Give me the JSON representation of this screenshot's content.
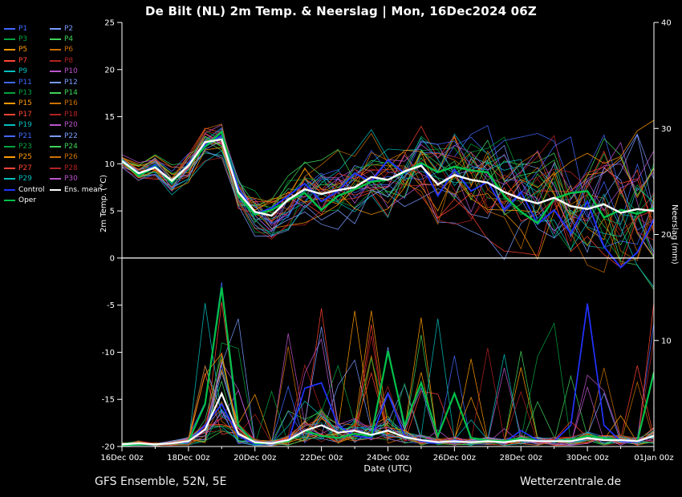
{
  "title": "De Bilt  (NL)  2m Temp. & Neerslag | Mon, 16Dec2024 06Z",
  "footer": {
    "left": "GFS Ensemble, 52N, 5E",
    "right": "Wetterzentrale.de"
  },
  "legend": {
    "member_labels": [
      "P1",
      "P2",
      "P3",
      "P4",
      "P5",
      "P6",
      "P7",
      "P8",
      "P9",
      "P10",
      "P11",
      "P12",
      "P13",
      "P14",
      "P15",
      "P16",
      "P17",
      "P18",
      "P19",
      "P20",
      "P21",
      "P22",
      "P23",
      "P24",
      "P25",
      "P26",
      "P27",
      "P28",
      "P29",
      "P30"
    ],
    "member_palette": [
      "#4169ff",
      "#7a9bff",
      "#00a33e",
      "#3fd35a",
      "#ff9a00",
      "#cc7000",
      "#ff4433",
      "#b22222",
      "#00bfbf",
      "#bb55cc"
    ],
    "specials": [
      {
        "label": "Control",
        "color": "#2233ff",
        "text_color": "#ffffff"
      },
      {
        "label": "Ens. mean",
        "color": "#ffffff",
        "text_color": "#ffffff"
      },
      {
        "label": "Oper",
        "color": "#00c24a",
        "text_color": "#ffffff"
      }
    ]
  },
  "chart_data": {
    "type": "line",
    "title": "De Bilt (NL) 2m Temp. & Neerslag | Mon, 16Dec2024 06Z",
    "xlabel": "Date (UTC)",
    "ylabel_left": "2m Temp. (°C)",
    "ylabel_right": "Neerslag (mm)",
    "x_tick_labels": [
      "16Dec 00z",
      "18Dec 00z",
      "20Dec 00z",
      "22Dec 00z",
      "24Dec 00z",
      "26Dec 00z",
      "28Dec 00z",
      "30Dec 00z",
      "01Jan 00z"
    ],
    "x_total_hours": 384,
    "x_major_step_hours": 48,
    "x_minor_step_hours": 24,
    "y_left": {
      "min": -20,
      "max": 25,
      "ticks": [
        25,
        20,
        15,
        10,
        5,
        0,
        -5,
        -10,
        -15,
        -20
      ]
    },
    "y_right": {
      "min": 0,
      "max": 40,
      "ticks": [
        40,
        30,
        20,
        10
      ]
    },
    "zero_line_temp": 0,
    "hours": [
      0,
      12,
      24,
      36,
      48,
      60,
      72,
      84,
      96,
      108,
      120,
      132,
      144,
      156,
      168,
      180,
      192,
      204,
      216,
      228,
      240,
      252,
      264,
      276,
      288,
      300,
      312,
      324,
      336,
      348,
      360,
      372,
      384
    ],
    "series": [
      {
        "name": "Ens. mean",
        "color": "#ffffff",
        "width": 2.4,
        "temp": [
          10.3,
          9.0,
          9.6,
          8.2,
          9.8,
          12.3,
          12.6,
          7.0,
          4.9,
          4.5,
          6.2,
          7.3,
          6.8,
          7.2,
          7.5,
          8.6,
          8.3,
          9.2,
          9.8,
          7.8,
          8.8,
          8.3,
          8.0,
          7.0,
          6.3,
          5.8,
          6.4,
          5.5,
          5.2,
          5.7,
          4.8,
          5.2,
          5.0
        ],
        "precip": [
          0.2,
          0.3,
          0.2,
          0.3,
          0.5,
          1.6,
          5.0,
          1.2,
          0.4,
          0.3,
          0.6,
          1.5,
          2.0,
          1.3,
          1.5,
          1.1,
          1.5,
          0.9,
          0.6,
          0.4,
          0.5,
          0.4,
          0.5,
          0.4,
          0.6,
          0.5,
          0.5,
          0.5,
          0.8,
          0.6,
          0.6,
          0.5,
          1.0
        ]
      },
      {
        "name": "Control",
        "color": "#2233ff",
        "width": 1.9,
        "temp": [
          10.5,
          8.8,
          9.9,
          7.9,
          10.1,
          12.0,
          13.0,
          7.5,
          4.7,
          5.3,
          6.6,
          7.9,
          6.0,
          7.1,
          9.0,
          8.1,
          10.4,
          9.0,
          10.0,
          6.6,
          9.4,
          7.1,
          8.1,
          5.1,
          7.0,
          3.6,
          5.1,
          2.6,
          6.0,
          1.2,
          -1.0,
          0.6,
          4.1
        ],
        "precip": [
          0.1,
          0.2,
          0.2,
          0.3,
          0.4,
          2.0,
          4.0,
          1.0,
          0.2,
          0.3,
          0.5,
          5.5,
          6.0,
          2.0,
          1.0,
          0.8,
          5.0,
          1.0,
          0.5,
          0.3,
          0.6,
          0.4,
          0.5,
          0.4,
          1.5,
          0.6,
          0.5,
          2.0,
          13.5,
          2.0,
          0.5,
          0.4,
          1.0
        ]
      },
      {
        "name": "Oper",
        "color": "#00c24a",
        "width": 2.4,
        "temp": [
          10.4,
          8.7,
          9.7,
          8.0,
          9.9,
          11.8,
          13.4,
          6.6,
          4.6,
          5.1,
          6.1,
          6.9,
          5.1,
          6.6,
          7.3,
          8.1,
          8.3,
          9.1,
          10.1,
          9.1,
          9.7,
          9.3,
          9.1,
          6.6,
          4.9,
          3.7,
          6.3,
          6.9,
          7.1,
          4.3,
          5.1,
          4.7,
          5.3
        ],
        "precip": [
          0.1,
          0.2,
          0.2,
          0.3,
          0.5,
          4.0,
          15.0,
          2.0,
          0.3,
          0.3,
          0.5,
          1.5,
          1.0,
          0.8,
          1.2,
          1.0,
          9.0,
          2.0,
          6.0,
          1.0,
          5.0,
          0.8,
          0.6,
          0.5,
          0.8,
          0.5,
          0.5,
          0.6,
          1.0,
          0.8,
          0.6,
          0.5,
          7.0
        ]
      }
    ],
    "members_render": {
      "count": 30,
      "noise_persistence": 0.55,
      "noise_step": 2.2,
      "amp_base": 0.7,
      "amp_growth": 5.0,
      "spike_prob": 0.1,
      "spike_max": 12,
      "temp_clamp": [
        -8,
        16
      ],
      "precip_clamp": [
        0,
        15.5
      ]
    }
  }
}
